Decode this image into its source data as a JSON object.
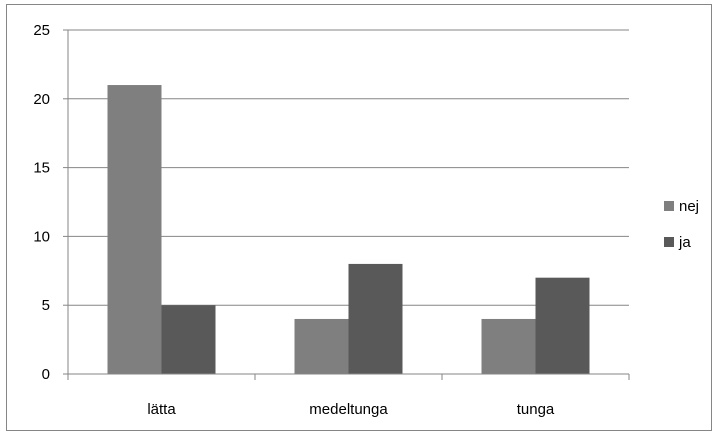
{
  "chart_data": {
    "type": "bar",
    "categories": [
      "lätta",
      "medeltunga",
      "tunga"
    ],
    "series": [
      {
        "name": "nej",
        "values": [
          21,
          4,
          4
        ],
        "color": "#7f7f7f"
      },
      {
        "name": "ja",
        "values": [
          5,
          8,
          7
        ],
        "color": "#595959"
      }
    ],
    "ylim": [
      0,
      25
    ],
    "yticks": [
      0,
      5,
      10,
      15,
      20,
      25
    ],
    "title": "",
    "xlabel": "",
    "ylabel": "",
    "grid": true,
    "legend": "right"
  }
}
